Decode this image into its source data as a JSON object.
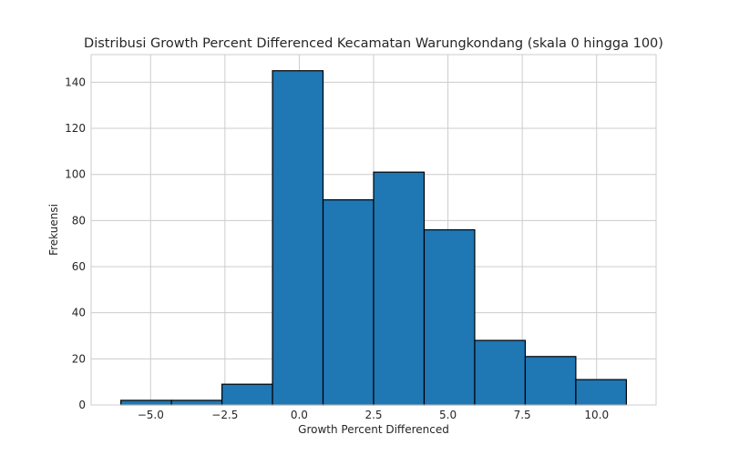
{
  "chart_data": {
    "type": "bar",
    "title": "Distribusi Growth Percent Differenced Kecamatan Warungkondang (skala 0 hingga 100)",
    "xlabel": "Growth Percent Differenced",
    "ylabel": "Frekuensi",
    "bin_edges": [
      -6.0,
      -4.3,
      -2.6,
      -0.9,
      0.8,
      2.5,
      4.2,
      5.9,
      7.6,
      9.3,
      11.0
    ],
    "values": [
      2,
      2,
      9,
      145,
      89,
      101,
      76,
      28,
      21,
      11
    ],
    "xlim": [
      -7.0,
      12.0
    ],
    "ylim": [
      0,
      152
    ],
    "xticks": [
      -5.0,
      -2.5,
      0.0,
      2.5,
      5.0,
      7.5,
      10.0
    ],
    "xtick_labels": [
      "−5.0",
      "−2.5",
      "0.0",
      "2.5",
      "5.0",
      "7.5",
      "10.0"
    ],
    "yticks": [
      0,
      20,
      40,
      60,
      80,
      100,
      120,
      140
    ],
    "ytick_labels": [
      "0",
      "20",
      "40",
      "60",
      "80",
      "100",
      "120",
      "140"
    ],
    "grid": true,
    "bar_color": "#1f77b4",
    "edge_color": "#000000",
    "grid_color": "#cccccc"
  }
}
